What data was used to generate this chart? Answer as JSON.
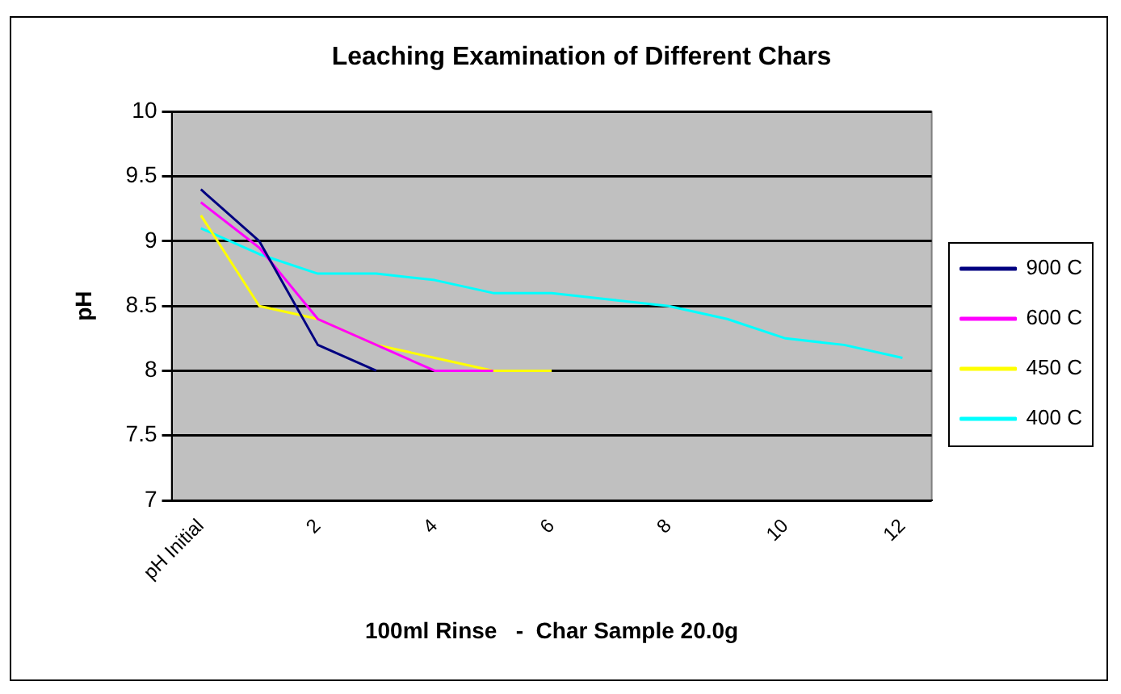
{
  "chart_data": {
    "type": "line",
    "title": "Leaching Examination of Different Chars",
    "xlabel": "100ml Rinse   -  Char Sample 20.0g",
    "ylabel": "pH",
    "categories": [
      "pH Initial",
      null,
      "2",
      null,
      "4",
      null,
      "6",
      null,
      "8",
      null,
      "10",
      null,
      "12"
    ],
    "series": [
      {
        "name": "900 C",
        "color": "#000080",
        "values": [
          9.4,
          9.0,
          8.2,
          8.0,
          null,
          null,
          null,
          null,
          null,
          null,
          null,
          null,
          null
        ]
      },
      {
        "name": "600 C",
        "color": "#ff00ff",
        "values": [
          9.3,
          8.95,
          8.4,
          8.2,
          8.0,
          8.0,
          null,
          null,
          null,
          null,
          null,
          null,
          null
        ]
      },
      {
        "name": "450 C",
        "color": "#ffff00",
        "values": [
          9.2,
          8.5,
          8.4,
          8.2,
          8.1,
          8.0,
          8.0,
          null,
          null,
          null,
          null,
          null,
          null
        ]
      },
      {
        "name": "400 C",
        "color": "#00ffff",
        "values": [
          9.1,
          8.9,
          8.75,
          8.75,
          8.7,
          8.6,
          8.6,
          8.55,
          8.5,
          8.4,
          8.25,
          8.2,
          8.1
        ]
      }
    ],
    "ylim": [
      7,
      10
    ],
    "yticks": [
      7,
      7.5,
      8,
      8.5,
      9,
      9.5,
      10
    ],
    "grid": "y",
    "legend": "right",
    "marker": "none",
    "line_style": "solid"
  }
}
